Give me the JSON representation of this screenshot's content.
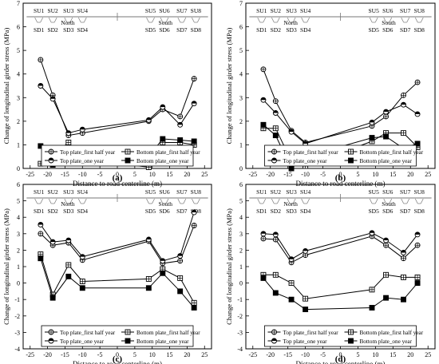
{
  "chart_data": [
    {
      "type": "line",
      "panel_label": "(a)",
      "xlabel": "Distance to road centerline (m)",
      "ylabel": "Change of longitudinal girder stress (MPa)",
      "xlim": [
        -27,
        27
      ],
      "ylim": [
        0,
        7
      ],
      "xticks": [
        -25,
        -20,
        -15,
        -10,
        -5,
        0,
        5,
        10,
        15,
        20,
        25
      ],
      "yticks": [
        0,
        1,
        2,
        3,
        4,
        5,
        6,
        7
      ],
      "legend_position": "bottom-center",
      "su_labels_top": [
        "SU1",
        "SU2",
        "SU3",
        "SU4",
        "SU5",
        "SU6",
        "SU7",
        "SU8"
      ],
      "sd_labels_bottom": [
        "SD1",
        "SD2",
        "SD3",
        "SD4",
        "SD5",
        "SD6",
        "SD7",
        "SD8"
      ],
      "region_labels": [
        "North",
        "South"
      ],
      "series": [
        {
          "name": "Top plate_first half year",
          "marker": "circle-cross",
          "x": [
            -22,
            -18.5,
            -14,
            -10,
            9,
            13,
            18,
            22
          ],
          "values": [
            4.6,
            3.1,
            1.4,
            1.5,
            2.0,
            2.5,
            2.2,
            3.8
          ]
        },
        {
          "name": "Bottom plate_first half year",
          "marker": "square-cross",
          "x": [
            -22,
            -18.5,
            -14,
            -10,
            9,
            13,
            18,
            22
          ],
          "values": [
            0.2,
            0.55,
            1.1,
            0.4,
            0.05,
            1.1,
            1.1,
            1.0
          ]
        },
        {
          "name": "Top plate_one year",
          "marker": "half-circle",
          "x": [
            -22,
            -18.5,
            -14,
            -10,
            9,
            13,
            18,
            22
          ],
          "values": [
            3.5,
            2.95,
            1.5,
            1.65,
            2.05,
            2.6,
            1.85,
            2.75
          ]
        },
        {
          "name": "Bottom plate_one year",
          "marker": "square-filled",
          "x": [
            -22,
            -18.5,
            -14,
            -10,
            9,
            13,
            18,
            22
          ],
          "values": [
            0.95,
            0.15,
            0.9,
            0.45,
            0.5,
            1.25,
            1.2,
            1.15
          ]
        }
      ]
    },
    {
      "type": "line",
      "panel_label": "(b)",
      "xlabel": "Distance to road centerline (m)",
      "ylabel": "Change of longitudinal girder stress (MPa)",
      "xlim": [
        -27,
        27
      ],
      "ylim": [
        0,
        7
      ],
      "xticks": [
        -25,
        -20,
        -15,
        -10,
        -5,
        0,
        5,
        10,
        15,
        20,
        25
      ],
      "yticks": [
        0,
        1,
        2,
        3,
        4,
        5,
        6,
        7
      ],
      "legend_position": "bottom-center",
      "su_labels_top": [
        "SU1",
        "SU2",
        "SU3",
        "SU4",
        "SU5",
        "SU6",
        "SU7",
        "SU8"
      ],
      "sd_labels_bottom": [
        "SD1",
        "SD2",
        "SD3",
        "SD4",
        "SD5",
        "SD6",
        "SD7",
        "SD8"
      ],
      "region_labels": [
        "North",
        "South"
      ],
      "series": [
        {
          "name": "Top plate_first half year",
          "marker": "circle-cross",
          "x": [
            -22,
            -18.5,
            -14,
            -10,
            9,
            13,
            18,
            22
          ],
          "values": [
            4.2,
            2.85,
            1.6,
            1.1,
            1.8,
            2.2,
            3.1,
            3.65
          ]
        },
        {
          "name": "Bottom plate_first half year",
          "marker": "square-cross",
          "x": [
            -22,
            -18.5,
            -14,
            -10,
            9,
            13,
            18,
            22
          ],
          "values": [
            1.7,
            1.7,
            0.3,
            0.1,
            1.15,
            1.5,
            1.5,
            0.9
          ]
        },
        {
          "name": "Top plate_one year",
          "marker": "half-circle",
          "x": [
            -22,
            -18.5,
            -14,
            -10,
            9,
            13,
            18,
            22
          ],
          "values": [
            2.9,
            2.35,
            1.55,
            1.05,
            1.95,
            2.4,
            2.7,
            2.3
          ]
        },
        {
          "name": "Bottom plate_one year",
          "marker": "square-filled",
          "x": [
            -22,
            -18.5,
            -14,
            -10,
            9,
            13,
            18,
            22
          ],
          "values": [
            1.85,
            1.4,
            0.0,
            0.5,
            1.3,
            1.35,
            0.85,
            1.05
          ]
        }
      ]
    },
    {
      "type": "line",
      "panel_label": "(c)",
      "xlabel": "Distance to road centerline (m)",
      "ylabel": "Change of longitudinal girder stress (MPa)",
      "xlim": [
        -27,
        27
      ],
      "ylim": [
        -4,
        6
      ],
      "xticks": [
        -25,
        -20,
        -15,
        -10,
        -5,
        0,
        5,
        10,
        15,
        20,
        25
      ],
      "yticks": [
        -4,
        -3,
        -2,
        -1,
        0,
        1,
        2,
        3,
        4,
        5,
        6
      ],
      "legend_position": "bottom-center",
      "su_labels_top": [
        "SU1",
        "SU2",
        "SU3",
        "SU4",
        "SU5",
        "SU6",
        "SU7",
        "SU8"
      ],
      "sd_labels_bottom": [
        "SD1",
        "SD2",
        "SD3",
        "SD4",
        "SD5",
        "SD6",
        "SD7",
        "SD8"
      ],
      "region_labels": [
        "North",
        "South"
      ],
      "series": [
        {
          "name": "Top plate_first half year",
          "marker": "circle-cross",
          "x": [
            -22,
            -18.5,
            -14,
            -10,
            9,
            13,
            18,
            22
          ],
          "values": [
            3.0,
            2.3,
            2.45,
            1.4,
            2.55,
            1.2,
            1.35,
            3.5
          ]
        },
        {
          "name": "Bottom plate_first half year",
          "marker": "square-cross",
          "x": [
            -22,
            -18.5,
            -14,
            -10,
            9,
            13,
            18,
            22
          ],
          "values": [
            1.75,
            -0.7,
            1.1,
            0.1,
            0.25,
            0.85,
            0.3,
            -1.2
          ]
        },
        {
          "name": "Top plate_one year",
          "marker": "half-circle",
          "x": [
            -22,
            -18.5,
            -14,
            -10,
            9,
            13,
            18,
            22
          ],
          "values": [
            3.55,
            2.5,
            2.6,
            1.6,
            2.65,
            1.35,
            1.65,
            4.3
          ]
        },
        {
          "name": "Bottom plate_one year",
          "marker": "square-filled",
          "x": [
            -22,
            -18.5,
            -14,
            -10,
            9,
            13,
            18,
            22
          ],
          "values": [
            1.5,
            -0.9,
            0.4,
            -0.3,
            -0.3,
            0.6,
            -0.5,
            -1.5
          ]
        }
      ]
    },
    {
      "type": "line",
      "panel_label": "(d)",
      "xlabel": "Distance to road centerline (m)",
      "ylabel": "Change of longitudinal girder stress (MPa)",
      "xlim": [
        -27,
        27
      ],
      "ylim": [
        -4,
        6
      ],
      "xticks": [
        -25,
        -20,
        -15,
        -10,
        -5,
        0,
        5,
        10,
        15,
        20,
        25
      ],
      "yticks": [
        -4,
        -3,
        -2,
        -1,
        0,
        1,
        2,
        3,
        4,
        5,
        6
      ],
      "legend_position": "bottom-center",
      "su_labels_top": [
        "SU1",
        "SU2",
        "SU3",
        "SU4",
        "SU5",
        "SU6",
        "SU7",
        "SU8"
      ],
      "sd_labels_bottom": [
        "SD1",
        "SD2",
        "SD3",
        "SD4",
        "SD5",
        "SD6",
        "SD7",
        "SD8"
      ],
      "region_labels": [
        "North",
        "South"
      ],
      "series": [
        {
          "name": "Top plate_first half year",
          "marker": "circle-cross",
          "x": [
            -22,
            -18.5,
            -14,
            -10,
            9,
            13,
            18,
            22
          ],
          "values": [
            2.7,
            2.65,
            1.25,
            1.7,
            2.85,
            2.3,
            1.5,
            2.3
          ]
        },
        {
          "name": "Bottom plate_first half year",
          "marker": "square-cross",
          "x": [
            -22,
            -18.5,
            -14,
            -10,
            9,
            13,
            18,
            22
          ],
          "values": [
            0.5,
            0.5,
            0.0,
            -0.95,
            -0.4,
            0.5,
            0.35,
            0.35
          ]
        },
        {
          "name": "Top plate_one year",
          "marker": "half-circle",
          "x": [
            -22,
            -18.5,
            -14,
            -10,
            9,
            13,
            18,
            22
          ],
          "values": [
            3.0,
            2.95,
            1.45,
            1.95,
            3.05,
            2.6,
            1.85,
            2.95
          ]
        },
        {
          "name": "Bottom plate_one year",
          "marker": "square-filled",
          "x": [
            -22,
            -18.5,
            -14,
            -10,
            9,
            13,
            18,
            22
          ],
          "values": [
            0.3,
            -0.6,
            -1.0,
            -1.6,
            -1.5,
            -0.9,
            -1.0,
            0.0
          ]
        }
      ]
    }
  ]
}
